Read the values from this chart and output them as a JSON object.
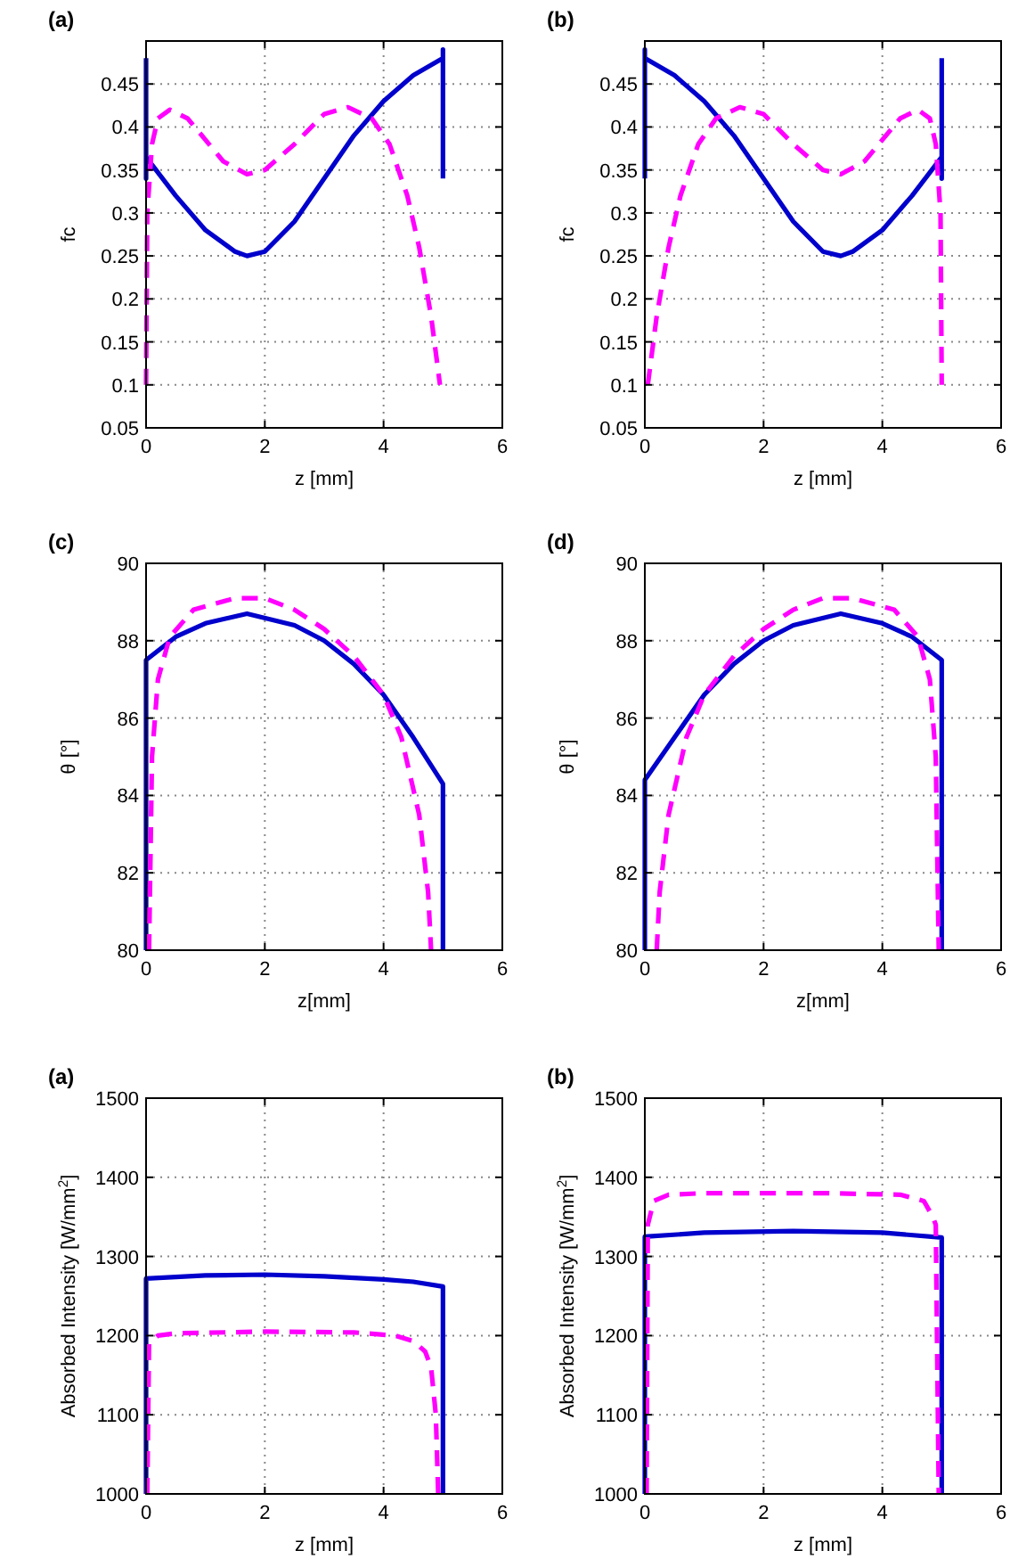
{
  "chart_data": [
    {
      "type": "line",
      "title": "(a)",
      "xlabel": "z [mm]",
      "ylabel": "fc",
      "xlim": [
        0,
        6
      ],
      "xticks": [
        0,
        2,
        4,
        6
      ],
      "ylim": [
        0.05,
        0.5
      ],
      "yticks": [
        0.05,
        0.1,
        0.15,
        0.2,
        0.25,
        0.3,
        0.35,
        0.4,
        0.45
      ],
      "grid": true,
      "series": [
        {
          "color": "#0000cc",
          "line_style": "solid",
          "x": [
            0,
            0,
            0,
            0.5,
            1,
            1.5,
            1.7,
            2,
            2.5,
            3,
            3.5,
            4,
            4.5,
            5,
            5,
            5
          ],
          "values": [
            0.48,
            0.34,
            0.365,
            0.32,
            0.28,
            0.255,
            0.25,
            0.255,
            0.29,
            0.34,
            0.39,
            0.43,
            0.46,
            0.48,
            0.49,
            0.34
          ]
        },
        {
          "color": "#ff00ff",
          "line_style": "dashed",
          "x": [
            0,
            0.02,
            0.1,
            0.2,
            0.4,
            0.7,
            1,
            1.3,
            1.7,
            2,
            2.5,
            3,
            3.4,
            3.8,
            4.1,
            4.4,
            4.6,
            4.8,
            4.95
          ],
          "values": [
            0.1,
            0.3,
            0.38,
            0.41,
            0.42,
            0.41,
            0.385,
            0.36,
            0.345,
            0.35,
            0.38,
            0.415,
            0.423,
            0.41,
            0.38,
            0.32,
            0.26,
            0.18,
            0.1
          ]
        }
      ]
    },
    {
      "type": "line",
      "title": "(b)",
      "xlabel": "z [mm]",
      "ylabel": "fc",
      "xlim": [
        0,
        6
      ],
      "xticks": [
        0,
        2,
        4,
        6
      ],
      "ylim": [
        0.05,
        0.5
      ],
      "yticks": [
        0.05,
        0.1,
        0.15,
        0.2,
        0.25,
        0.3,
        0.35,
        0.4,
        0.45
      ],
      "grid": true,
      "series": [
        {
          "color": "#0000cc",
          "line_style": "solid",
          "x": [
            0,
            0,
            0,
            0.5,
            1,
            1.5,
            2,
            2.5,
            3,
            3.3,
            3.5,
            4,
            4.5,
            5,
            5,
            5
          ],
          "values": [
            0.34,
            0.49,
            0.48,
            0.46,
            0.43,
            0.39,
            0.34,
            0.29,
            0.255,
            0.25,
            0.255,
            0.28,
            0.32,
            0.365,
            0.34,
            0.48
          ]
        },
        {
          "color": "#ff00ff",
          "line_style": "dashed",
          "x": [
            0.05,
            0.2,
            0.4,
            0.6,
            0.9,
            1.2,
            1.6,
            2,
            2.5,
            3,
            3.3,
            3.7,
            4,
            4.3,
            4.6,
            4.8,
            4.9,
            4.98,
            5
          ],
          "values": [
            0.1,
            0.18,
            0.26,
            0.32,
            0.38,
            0.41,
            0.423,
            0.415,
            0.38,
            0.35,
            0.345,
            0.36,
            0.385,
            0.41,
            0.42,
            0.41,
            0.38,
            0.3,
            0.1
          ]
        }
      ]
    },
    {
      "type": "line",
      "title": "(c)",
      "xlabel": "z[mm]",
      "ylabel": "θ [°]",
      "xlim": [
        0,
        6
      ],
      "xticks": [
        0,
        2,
        4,
        6
      ],
      "ylim": [
        80,
        90
      ],
      "yticks": [
        80,
        82,
        84,
        86,
        88,
        90
      ],
      "grid": true,
      "series": [
        {
          "color": "#0000cc",
          "line_style": "solid",
          "x": [
            0,
            0,
            0.5,
            1,
            1.7,
            2.5,
            3,
            3.5,
            4,
            4.5,
            5,
            5
          ],
          "values": [
            80,
            87.5,
            88.1,
            88.45,
            88.7,
            88.4,
            88,
            87.4,
            86.6,
            85.5,
            84.3,
            80
          ]
        },
        {
          "color": "#ff00ff",
          "line_style": "dashed",
          "x": [
            0.05,
            0.1,
            0.2,
            0.4,
            0.8,
            1.5,
            2,
            2.5,
            3,
            3.5,
            4,
            4.3,
            4.6,
            4.75,
            4.8
          ],
          "values": [
            80,
            85,
            87,
            88.1,
            88.8,
            89.1,
            89.1,
            88.8,
            88.3,
            87.6,
            86.6,
            85.5,
            83.5,
            81.5,
            80
          ]
        }
      ]
    },
    {
      "type": "line",
      "title": "(d)",
      "xlabel": "z[mm]",
      "ylabel": "θ [°]",
      "xlim": [
        0,
        6
      ],
      "xticks": [
        0,
        2,
        4,
        6
      ],
      "ylim": [
        80,
        90
      ],
      "yticks": [
        80,
        82,
        84,
        86,
        88,
        90
      ],
      "grid": true,
      "series": [
        {
          "color": "#0000cc",
          "line_style": "solid",
          "x": [
            0,
            0,
            0.5,
            1,
            1.5,
            2,
            2.5,
            3.3,
            4,
            4.5,
            5,
            5
          ],
          "values": [
            80,
            84.4,
            85.5,
            86.6,
            87.4,
            88,
            88.4,
            88.7,
            88.45,
            88.1,
            87.5,
            80
          ]
        },
        {
          "color": "#ff00ff",
          "line_style": "dashed",
          "x": [
            0.2,
            0.25,
            0.4,
            0.7,
            1,
            1.5,
            2,
            2.5,
            3,
            3.5,
            4.2,
            4.6,
            4.8,
            4.9,
            4.95
          ],
          "values": [
            80,
            81.5,
            83.5,
            85.5,
            86.6,
            87.6,
            88.3,
            88.8,
            89.1,
            89.1,
            88.8,
            88.1,
            87,
            85,
            80
          ]
        }
      ]
    },
    {
      "type": "line",
      "title": "(a)",
      "xlabel": "z [mm]",
      "ylabel": "Absorbed Intensity [W/mm$^{2}$]",
      "xlim": [
        0,
        6
      ],
      "xticks": [
        0,
        2,
        4,
        6
      ],
      "ylim": [
        1000,
        1500
      ],
      "yticks": [
        1000,
        1100,
        1200,
        1300,
        1400,
        1500
      ],
      "grid": true,
      "series": [
        {
          "color": "#0000cc",
          "line_style": "solid",
          "x": [
            0,
            0,
            1,
            2,
            3,
            4,
            4.5,
            5,
            5
          ],
          "values": [
            1000,
            1272,
            1276,
            1277,
            1275,
            1271,
            1268,
            1262,
            1000
          ]
        },
        {
          "color": "#ff00ff",
          "line_style": "dashed",
          "x": [
            0.02,
            0.05,
            0.2,
            0.5,
            2,
            3.5,
            4.2,
            4.5,
            4.7,
            4.8,
            4.88,
            4.92
          ],
          "values": [
            1000,
            1190,
            1200,
            1203,
            1205,
            1204,
            1200,
            1193,
            1180,
            1160,
            1100,
            1000
          ]
        }
      ]
    },
    {
      "type": "line",
      "title": "(b)",
      "xlabel": "z [mm]",
      "ylabel": "Absorbed Intensity [W/mm$^{2}$]",
      "xlim": [
        0,
        6
      ],
      "xticks": [
        0,
        2,
        4,
        6
      ],
      "ylim": [
        1000,
        1500
      ],
      "yticks": [
        1000,
        1100,
        1200,
        1300,
        1400,
        1500
      ],
      "grid": true,
      "series": [
        {
          "color": "#0000cc",
          "line_style": "solid",
          "x": [
            0,
            0,
            1,
            2.5,
            4,
            5,
            5
          ],
          "values": [
            1000,
            1325,
            1330,
            1332,
            1330,
            1324,
            1000
          ]
        },
        {
          "color": "#ff00ff",
          "line_style": "dashed",
          "x": [
            0.03,
            0.05,
            0.15,
            0.4,
            1,
            3,
            4.3,
            4.7,
            4.85,
            4.9,
            4.95
          ],
          "values": [
            1000,
            1340,
            1370,
            1378,
            1380,
            1380,
            1378,
            1370,
            1350,
            1340,
            1000
          ]
        }
      ]
    }
  ]
}
